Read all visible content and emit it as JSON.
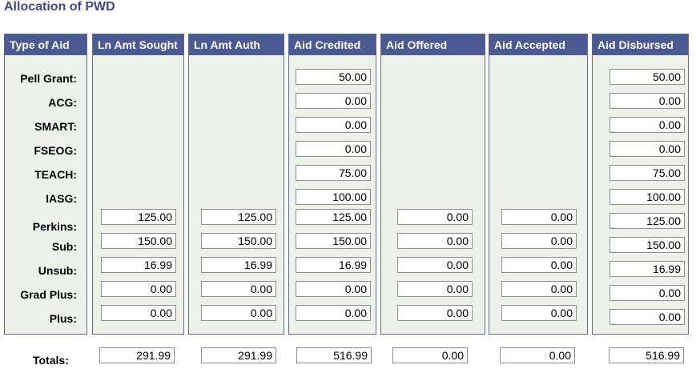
{
  "page": {
    "title": "Allocation of PWD"
  },
  "columns": {
    "type_of_aid": "Type of Aid",
    "ln_amt_sought": "Ln Amt Sought",
    "ln_amt_auth": "Ln Amt Auth",
    "aid_credited": "Aid Credited",
    "aid_offered": "Aid Offered",
    "aid_accepted": "Aid Accepted",
    "aid_disbursed": "Aid Disbursed"
  },
  "rows": {
    "pell": {
      "label": "Pell Grant:",
      "aid_credited": "50.00",
      "aid_disbursed": "50.00"
    },
    "acg": {
      "label": "ACG:",
      "aid_credited": "0.00",
      "aid_disbursed": "0.00"
    },
    "smart": {
      "label": "SMART:",
      "aid_credited": "0.00",
      "aid_disbursed": "0.00"
    },
    "fseog": {
      "label": "FSEOG:",
      "aid_credited": "0.00",
      "aid_disbursed": "0.00"
    },
    "teach": {
      "label": "TEACH:",
      "aid_credited": "75.00",
      "aid_disbursed": "75.00"
    },
    "iasg": {
      "label": "IASG:",
      "aid_credited": "100.00",
      "aid_disbursed": "100.00"
    },
    "perkins": {
      "label": "Perkins:",
      "ln_amt_sought": "125.00",
      "ln_amt_auth": "125.00",
      "aid_credited": "125.00",
      "aid_offered": "0.00",
      "aid_accepted": "0.00",
      "aid_disbursed": "125.00"
    },
    "sub": {
      "label": "Sub:",
      "ln_amt_sought": "150.00",
      "ln_amt_auth": "150.00",
      "aid_credited": "150.00",
      "aid_offered": "0.00",
      "aid_accepted": "0.00",
      "aid_disbursed": "150.00"
    },
    "unsub": {
      "label": "Unsub:",
      "ln_amt_sought": "16.99",
      "ln_amt_auth": "16.99",
      "aid_credited": "16.99",
      "aid_offered": "0.00",
      "aid_accepted": "0.00",
      "aid_disbursed": "16.99"
    },
    "grad_plus": {
      "label": "Grad Plus:",
      "ln_amt_sought": "0.00",
      "ln_amt_auth": "0.00",
      "aid_credited": "0.00",
      "aid_offered": "0.00",
      "aid_accepted": "0.00",
      "aid_disbursed": "0.00"
    },
    "plus": {
      "label": "Plus:",
      "ln_amt_sought": "0.00",
      "ln_amt_auth": "0.00",
      "aid_credited": "0.00",
      "aid_offered": "0.00",
      "aid_accepted": "0.00",
      "aid_disbursed": "0.00"
    }
  },
  "totals": {
    "label": "Totals:",
    "ln_amt_sought": "291.99",
    "ln_amt_auth": "291.99",
    "aid_credited": "516.99",
    "aid_offered": "0.00",
    "aid_accepted": "0.00",
    "aid_disbursed": "516.99"
  }
}
